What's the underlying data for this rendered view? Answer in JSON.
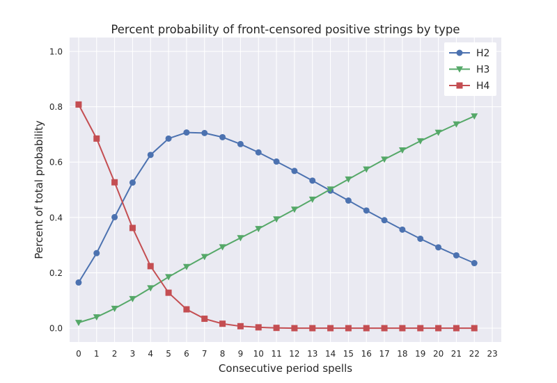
{
  "chart_data": {
    "type": "line",
    "title": "Percent probability of front-censored positive strings by type",
    "xlabel": "Consecutive period spells",
    "ylabel": "Percent of total probability",
    "xlim": [
      -0.5,
      23.5
    ],
    "ylim": [
      -0.05,
      1.05
    ],
    "x_ticks": [
      0,
      1,
      2,
      3,
      4,
      5,
      6,
      7,
      8,
      9,
      10,
      11,
      12,
      13,
      14,
      15,
      16,
      17,
      18,
      19,
      20,
      21,
      22,
      23
    ],
    "y_ticks": [
      0.0,
      0.2,
      0.4,
      0.6,
      0.8,
      1.0
    ],
    "y_tick_labels": [
      "0.0",
      "0.2",
      "0.4",
      "0.6",
      "0.8",
      "1.0"
    ],
    "grid": true,
    "legend_position": "top-right",
    "x": [
      0,
      1,
      2,
      3,
      4,
      5,
      6,
      7,
      8,
      9,
      10,
      11,
      12,
      13,
      14,
      15,
      16,
      17,
      18,
      19,
      20,
      21,
      22
    ],
    "series": [
      {
        "name": "H2",
        "color": "#4c72b0",
        "marker": "circle",
        "values": [
          0.165,
          0.271,
          0.401,
          0.526,
          0.626,
          0.685,
          0.707,
          0.705,
          0.69,
          0.665,
          0.635,
          0.602,
          0.568,
          0.533,
          0.497,
          0.461,
          0.425,
          0.39,
          0.356,
          0.323,
          0.292,
          0.263,
          0.235
        ]
      },
      {
        "name": "H3",
        "color": "#55a868",
        "marker": "triangle-down",
        "values": [
          0.02,
          0.04,
          0.071,
          0.106,
          0.145,
          0.185,
          0.222,
          0.258,
          0.293,
          0.326,
          0.359,
          0.394,
          0.429,
          0.465,
          0.502,
          0.538,
          0.574,
          0.61,
          0.643,
          0.676,
          0.707,
          0.737,
          0.766
        ]
      },
      {
        "name": "H4",
        "color": "#c44e52",
        "marker": "square",
        "values": [
          0.808,
          0.685,
          0.527,
          0.362,
          0.224,
          0.128,
          0.068,
          0.034,
          0.016,
          0.007,
          0.003,
          0.001,
          0.0,
          0.0,
          0.0,
          0.0,
          0.0,
          0.0,
          0.0,
          0.0,
          0.0,
          0.0,
          0.0
        ]
      }
    ]
  }
}
